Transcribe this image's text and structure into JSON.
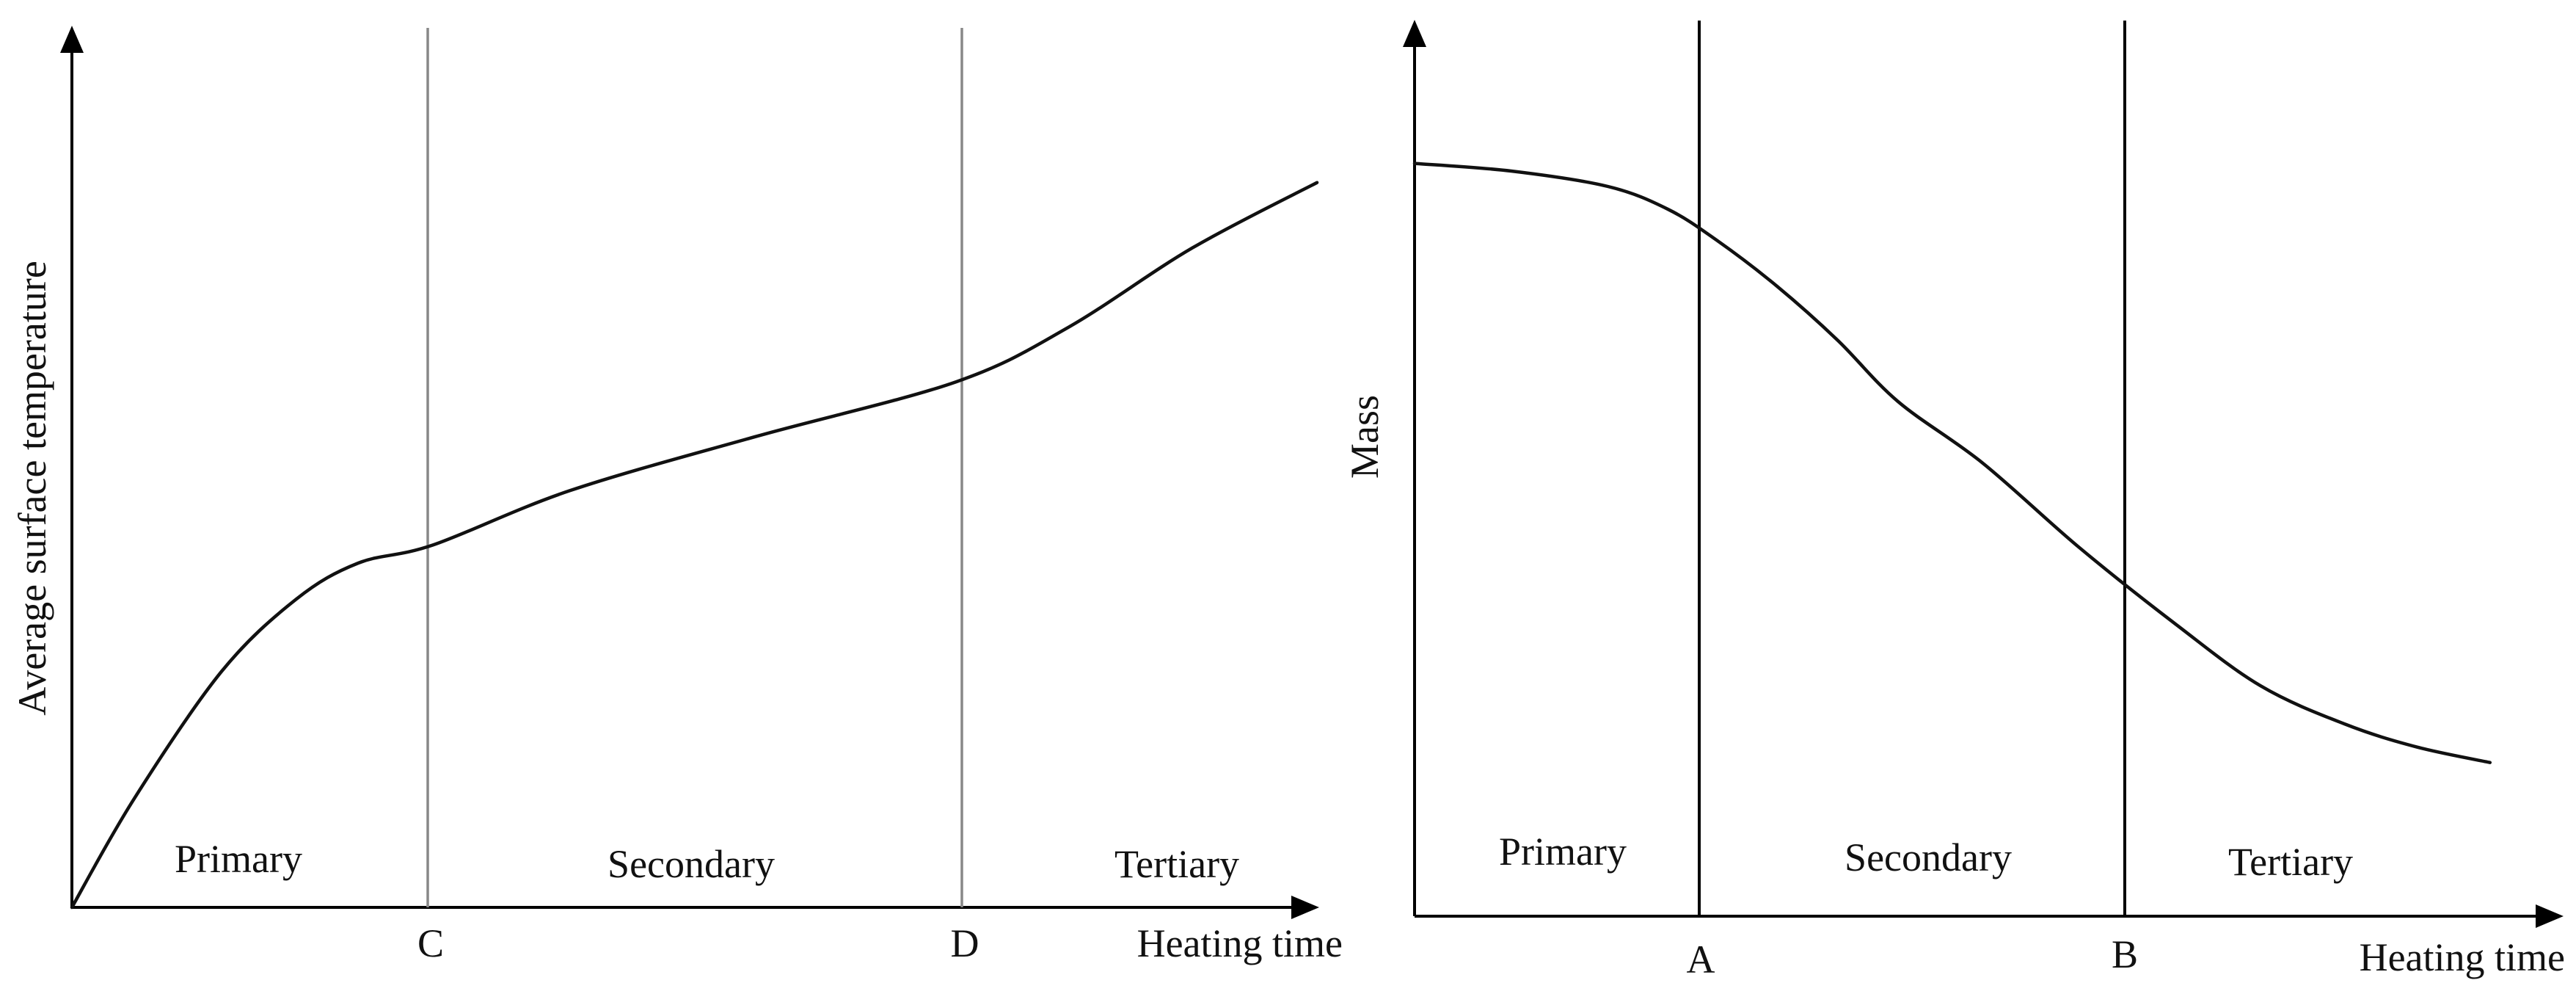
{
  "chart_data": [
    {
      "type": "line",
      "xlabel": "Heating time",
      "ylabel": "Average surface temperature",
      "regions": [
        "Primary",
        "Secondary",
        "Tertiary"
      ],
      "markers": [
        {
          "label": "C",
          "x": 0.29
        },
        {
          "label": "D",
          "x": 0.71
        }
      ],
      "marker_color": "#888888",
      "series": [
        {
          "values": [
            [
              0,
              0
            ],
            [
              0.05,
              0.3
            ],
            [
              0.12,
              0.65
            ],
            [
              0.18,
              0.85
            ],
            [
              0.23,
              0.95
            ],
            [
              0.29,
              1.0
            ],
            [
              0.4,
              1.15
            ],
            [
              0.55,
              1.3
            ],
            [
              0.71,
              1.45
            ],
            [
              0.8,
              1.6
            ],
            [
              0.9,
              1.82
            ],
            [
              1.0,
              2.0
            ]
          ]
        }
      ],
      "xlim": [
        0,
        1.0
      ],
      "ylim": [
        0,
        2.2
      ]
    },
    {
      "type": "line",
      "xlabel": "Heating time",
      "ylabel": "Mass",
      "regions": [
        "Primary",
        "Secondary",
        "Tertiary"
      ],
      "markers": [
        {
          "label": "A",
          "x": 0.25
        },
        {
          "label": "B",
          "x": 0.63
        }
      ],
      "marker_color": "#000000",
      "series": [
        {
          "values": [
            [
              0,
              0.98
            ],
            [
              0.08,
              0.97
            ],
            [
              0.16,
              0.95
            ],
            [
              0.21,
              0.92
            ],
            [
              0.25,
              0.88
            ],
            [
              0.3,
              0.82
            ],
            [
              0.35,
              0.75
            ],
            [
              0.4,
              0.67
            ],
            [
              0.47,
              0.59
            ],
            [
              0.55,
              0.48
            ],
            [
              0.63,
              0.38
            ],
            [
              0.7,
              0.3
            ],
            [
              0.77,
              0.25
            ],
            [
              0.83,
              0.22
            ],
            [
              0.89,
              0.2
            ]
          ]
        }
      ],
      "xlim": [
        0,
        1.0
      ],
      "ylim": [
        0,
        1.1
      ]
    }
  ]
}
